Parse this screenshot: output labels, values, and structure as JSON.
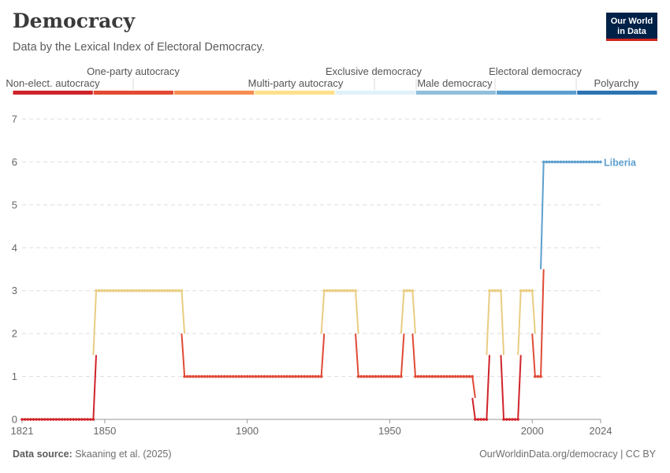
{
  "header": {
    "title": "Democracy",
    "subtitle": "Data by the Lexical Index of Electoral Democracy.",
    "logo_line1": "Our World",
    "logo_line2": "in Data"
  },
  "footer": {
    "source_label": "Data source:",
    "source_text": "Skaaning et al. (2025)",
    "link_text": "OurWorldinData.org/democracy | CC BY"
  },
  "chart_data": {
    "type": "line",
    "title": "Democracy",
    "subtitle": "Data by the Lexical Index of Electoral Democracy.",
    "xlabel": "",
    "ylabel": "",
    "xlim": [
      1821,
      2024
    ],
    "ylim": [
      0,
      7
    ],
    "x_ticks": [
      1821,
      1850,
      1900,
      1950,
      2000,
      2024
    ],
    "y_ticks": [
      0,
      1,
      2,
      3,
      4,
      5,
      6,
      7
    ],
    "grid": "horizontal dashed",
    "legend": {
      "placement": "top",
      "categories": [
        {
          "label": "Non-elect. autocracy",
          "color": "#d0232a"
        },
        {
          "label": "One-party autocracy",
          "color": "#e34a33"
        },
        {
          "label": "Multi-party autocracy",
          "color": "#f68d50"
        },
        {
          "label": "Exclusive democracy",
          "color": "#fee08b"
        },
        {
          "label": "Male democracy",
          "color": "#e0f1f9"
        },
        {
          "label": "Electoral democracy",
          "color": "#91bfdb"
        },
        {
          "label": "Polyarchy",
          "color": "#5d9fcf"
        },
        {
          "label": "",
          "color": "#2c73b4"
        }
      ]
    },
    "series": [
      {
        "name": "Liberia",
        "segments": [
          {
            "start": 1821,
            "end": 1846,
            "value": 0
          },
          {
            "start": 1847,
            "end": 1877,
            "value": 3
          },
          {
            "start": 1878,
            "end": 1926,
            "value": 1
          },
          {
            "start": 1927,
            "end": 1938,
            "value": 3
          },
          {
            "start": 1939,
            "end": 1954,
            "value": 1
          },
          {
            "start": 1955,
            "end": 1958,
            "value": 3
          },
          {
            "start": 1959,
            "end": 1979,
            "value": 1
          },
          {
            "start": 1980,
            "end": 1984,
            "value": 0
          },
          {
            "start": 1985,
            "end": 1989,
            "value": 3
          },
          {
            "start": 1990,
            "end": 1995,
            "value": 0
          },
          {
            "start": 1996,
            "end": 2000,
            "value": 3
          },
          {
            "start": 2001,
            "end": 2003,
            "value": 1
          },
          {
            "start": 2004,
            "end": 2024,
            "value": 6
          }
        ]
      }
    ],
    "level_colors": {
      "0": "#d0232a",
      "1": "#e04a36",
      "3": "#e8cd82",
      "6": "#5d9fcf"
    }
  }
}
